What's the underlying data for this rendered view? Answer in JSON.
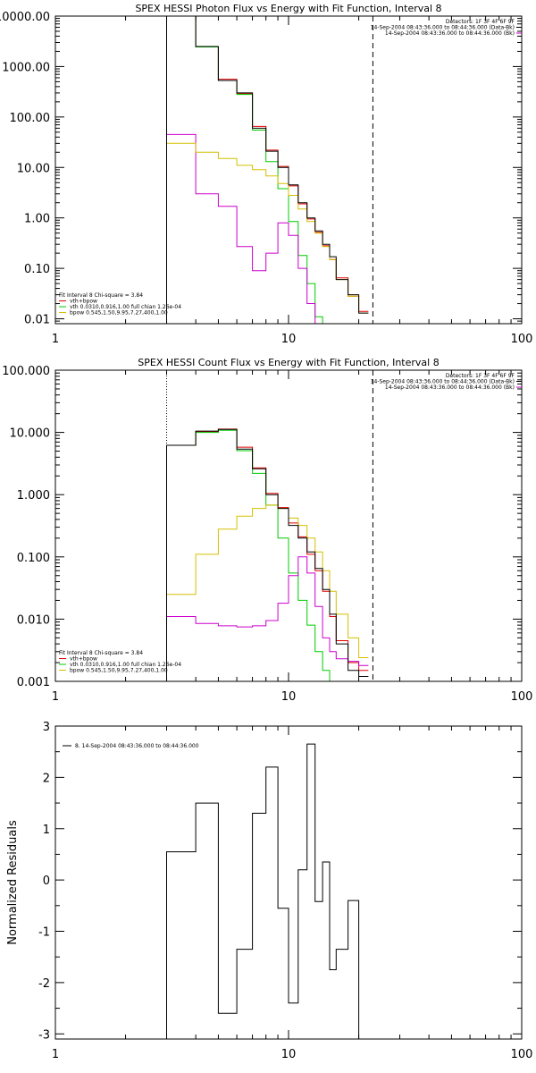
{
  "colors": {
    "background": "#ffffff",
    "axes": "#000000",
    "data": "#000000",
    "total_model": "#e00000",
    "vth": "#00cc00",
    "bpow": "#cc00cc",
    "bpow_gold": "#d4c000"
  },
  "chart_data": [
    {
      "id": "photon",
      "type": "line",
      "title": "SPEX HESSI Photon Flux vs Energy with Fit Function, Interval 8",
      "xscale": "log",
      "yscale": "log",
      "xlim": [
        1,
        100
      ],
      "ylim": [
        0.008,
        10000
      ],
      "xticks": [
        1,
        10,
        100
      ],
      "xtick_labels": [
        "1",
        "10",
        "100"
      ],
      "yticks": [
        0.01,
        0.1,
        1,
        10,
        100,
        1000,
        10000
      ],
      "ytick_labels": [
        "0.01",
        "0.10",
        "1.00",
        "10.00",
        "100.00",
        "1000.00",
        "10000.00"
      ],
      "edges": [
        3.0,
        4.0,
        5.0,
        6.0,
        7.0,
        8.0,
        9.0,
        10.0,
        11.0,
        12.0,
        13.0,
        14.0,
        15.0,
        16.0,
        18.0,
        20.0,
        22.0
      ],
      "series": [
        {
          "role": "data",
          "color": "#000000",
          "values": [
            10000,
            2500,
            530,
            300,
            60,
            21,
            10,
            4.5,
            2.0,
            1.0,
            0.55,
            0.3,
            0.17,
            0.06,
            0.03,
            0.013
          ]
        },
        {
          "role": "total",
          "color": "#e00000",
          "values": [
            10000,
            2450,
            560,
            290,
            65,
            22,
            10.5,
            4.3,
            1.9,
            0.95,
            0.52,
            0.28,
            0.15,
            0.065,
            0.028,
            0.014
          ]
        },
        {
          "role": "vth",
          "color": "#00cc00",
          "values": [
            10000,
            2450,
            530,
            280,
            55,
            13,
            3.8,
            0.85,
            0.18,
            0.05,
            0.011,
            0.008,
            0.008,
            0.008,
            0.008,
            0.008
          ]
        },
        {
          "role": "bpow",
          "color": "#cc00cc",
          "values": [
            45,
            3.0,
            1.7,
            0.27,
            0.09,
            0.2,
            0.8,
            0.45,
            0.1,
            0.02,
            0.008,
            0.008,
            0.008,
            0.008,
            0.008,
            0.008
          ]
        },
        {
          "role": "bpow-gold",
          "color": "#d4c000",
          "values": [
            30,
            20,
            15,
            11,
            9,
            6.8,
            4.8,
            2.8,
            1.5,
            0.85,
            0.5,
            0.27,
            0.15,
            0.06,
            0.028,
            0.013
          ]
        }
      ],
      "vlines": [
        {
          "x": 3.0,
          "style": "dotted"
        },
        {
          "x": 23.0,
          "style": "dashed"
        }
      ],
      "header_text": [
        "Detectors: 1F 3F 4F 6F 9F",
        "14-Sep-2004 08:43:36.000 to 08:44:36.000 (Data-Bk)",
        "14-Sep-2004 08:43:36.000 to 08:44:36.000 (Bk)"
      ],
      "legend_title": "Fit Interval 8   Chi-square = 3.84",
      "legend": [
        {
          "color": "#e00000",
          "label": "vth+bpow"
        },
        {
          "color": "#00cc00",
          "label": "vth 0.0310,0.916,1.00  full chian 1.26e-04"
        },
        {
          "color": "#d4c000",
          "label": "bpow 0.545,1.50,9.95,7.27,400,1.00"
        }
      ]
    },
    {
      "id": "count",
      "type": "line",
      "title": "SPEX HESSI Count Flux vs Energy with Fit Function, Interval 8",
      "xscale": "log",
      "yscale": "log",
      "xlim": [
        1,
        100
      ],
      "ylim": [
        0.001,
        100
      ],
      "xticks": [
        1,
        10,
        100
      ],
      "xtick_labels": [
        "1",
        "10",
        "100"
      ],
      "yticks": [
        0.001,
        0.01,
        0.1,
        1,
        10,
        100
      ],
      "ytick_labels": [
        "0.001",
        "0.010",
        "0.100",
        "1.000",
        "10.000",
        "100.000"
      ],
      "edges": [
        3.0,
        4.0,
        5.0,
        6.0,
        7.0,
        8.0,
        9.0,
        10.0,
        11.0,
        12.0,
        13.0,
        14.0,
        15.0,
        16.0,
        18.0,
        20.0,
        22.0
      ],
      "series": [
        {
          "role": "data",
          "color": "#000000",
          "values": [
            6.2,
            10.5,
            11.2,
            5.4,
            2.6,
            1.0,
            0.6,
            0.32,
            0.2,
            0.12,
            0.065,
            0.03,
            0.012,
            0.004,
            0.0015,
            0.0012
          ]
        },
        {
          "role": "total",
          "color": "#e00000",
          "values": [
            6.2,
            10.3,
            11.3,
            5.8,
            2.7,
            1.05,
            0.62,
            0.35,
            0.21,
            0.11,
            0.06,
            0.028,
            0.011,
            0.0045,
            0.002,
            0.0015
          ]
        },
        {
          "role": "vth",
          "color": "#00cc00",
          "values": [
            6.2,
            10.0,
            10.8,
            5.1,
            2.2,
            0.68,
            0.2,
            0.055,
            0.02,
            0.008,
            0.003,
            0.0015,
            0.0009,
            0.0009,
            0.0009,
            0.0009
          ]
        },
        {
          "role": "bpow",
          "color": "#cc00cc",
          "values": [
            0.011,
            0.0085,
            0.0078,
            0.0075,
            0.0078,
            0.0095,
            0.018,
            0.05,
            0.1,
            0.055,
            0.016,
            0.005,
            0.003,
            0.0023,
            0.0021,
            0.0018
          ]
        },
        {
          "role": "bpow-gold",
          "color": "#d4c000",
          "values": [
            0.025,
            0.11,
            0.28,
            0.45,
            0.6,
            0.68,
            0.6,
            0.42,
            0.32,
            0.2,
            0.12,
            0.06,
            0.028,
            0.012,
            0.005,
            0.0024
          ]
        }
      ],
      "vlines": [
        {
          "x": 3.0,
          "style": "dotted"
        },
        {
          "x": 23.0,
          "style": "dashed"
        }
      ],
      "header_text": [
        "Detectors: 1F 3F 4F 6F 9F",
        "14-Sep-2004 08:43:36.000 to 08:44:36.000 (Data-Bk)",
        "14-Sep-2004 08:43:36.000 to 08:44:36.000 (Bk)"
      ],
      "legend_title": "Fit Interval 8   Chi-square = 3.84",
      "legend": [
        {
          "color": "#e00000",
          "label": "vth+bpow"
        },
        {
          "color": "#00cc00",
          "label": "vth 0.0310,0.916,1.00  full chian 1.26e-04"
        },
        {
          "color": "#d4c000",
          "label": "bpow 0.545,1.50,9.95,7.27,400,1.00"
        }
      ]
    },
    {
      "id": "residuals",
      "type": "line",
      "title": "",
      "ylabel": "Normalized Residuals",
      "xscale": "log",
      "yscale": "linear",
      "xlim": [
        1,
        100
      ],
      "ylim": [
        -3.1,
        3.0
      ],
      "xticks": [
        1,
        10,
        100
      ],
      "xtick_labels": [
        "1",
        "10",
        "100"
      ],
      "yticks": [
        -3,
        -2,
        -1,
        0,
        1,
        2,
        3
      ],
      "ytick_labels": [
        "-3",
        "-2",
        "-1",
        "0",
        "1",
        "2",
        "3"
      ],
      "edges": [
        3.0,
        4.0,
        5.0,
        6.0,
        7.0,
        8.0,
        9.0,
        10.0,
        11.0,
        12.0,
        13.0,
        14.0,
        15.0,
        16.0,
        18.0,
        20.0,
        22.0
      ],
      "series": [
        {
          "role": "residual",
          "color": "#000000",
          "values": [
            0.55,
            1.5,
            -2.6,
            -1.35,
            1.3,
            2.2,
            -0.55,
            -2.4,
            0.2,
            2.65,
            -0.42,
            0.35,
            -1.75,
            -1.35,
            -0.4,
            -3.1
          ]
        }
      ],
      "legend": [
        {
          "color": "#000000",
          "label": "8. 14-Sep-2004 08:43:36.000 to 08:44:36.000"
        }
      ]
    }
  ]
}
